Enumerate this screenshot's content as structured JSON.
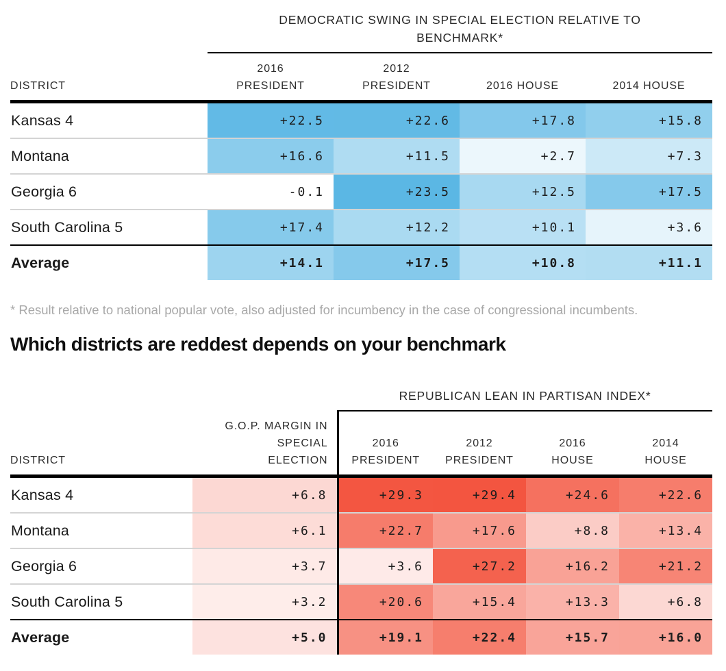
{
  "footnote": "* Result relative to national popular vote, also adjusted for incumbency in the case of congressional incumbents.",
  "headline": "Which districts are reddest depends on your benchmark",
  "chart_data": [
    {
      "type": "table",
      "subtype": "heatmap-table",
      "title": "DEMOCRATIC SWING IN SPECIAL ELECTION RELATIVE TO\nBENCHMARK*",
      "row_header": "DISTRICT",
      "columns": [
        "2016\nPRESIDENT",
        "2012\nPRESIDENT",
        "2016 HOUSE",
        "2014 HOUSE"
      ],
      "rows": [
        {
          "label": "Kansas 4",
          "values": [
            22.5,
            22.6,
            17.8,
            15.8
          ],
          "bold": false
        },
        {
          "label": "Montana",
          "values": [
            16.6,
            11.5,
            2.7,
            7.3
          ],
          "bold": false
        },
        {
          "label": "Georgia 6",
          "values": [
            -0.1,
            23.5,
            12.5,
            17.5
          ],
          "bold": false
        },
        {
          "label": "South Carolina 5",
          "values": [
            17.4,
            12.2,
            10.1,
            3.6
          ],
          "bold": false
        },
        {
          "label": "Average",
          "values": [
            14.1,
            17.5,
            10.8,
            11.1
          ],
          "bold": true
        }
      ],
      "value_format": "signed, one decimal, plus sign for positive",
      "accent_color": "#2ea3dd",
      "zero_color": "#ffffff",
      "scale_max": 30
    },
    {
      "type": "table",
      "subtype": "heatmap-table",
      "title": "REPUBLICAN LEAN IN PARTISAN INDEX*",
      "row_header": "DISTRICT",
      "gop_column": "G.O.P. MARGIN IN\nSPECIAL\nELECTION",
      "columns": [
        "2016\nPRESIDENT",
        "2012\nPRESIDENT",
        "2016\nHOUSE",
        "2014\nHOUSE"
      ],
      "rows": [
        {
          "label": "Kansas 4",
          "gop_margin": 6.8,
          "values": [
            29.3,
            29.4,
            24.6,
            22.6
          ],
          "bold": false
        },
        {
          "label": "Montana",
          "gop_margin": 6.1,
          "values": [
            22.7,
            17.6,
            8.8,
            13.4
          ],
          "bold": false
        },
        {
          "label": "Georgia 6",
          "gop_margin": 3.7,
          "values": [
            3.6,
            27.2,
            16.2,
            21.2
          ],
          "bold": false
        },
        {
          "label": "South Carolina 5",
          "gop_margin": 3.2,
          "values": [
            20.6,
            15.4,
            13.3,
            6.8
          ],
          "bold": false
        },
        {
          "label": "Average",
          "gop_margin": 5.0,
          "values": [
            19.1,
            22.4,
            15.7,
            16.0
          ],
          "bold": true
        }
      ],
      "value_format": "signed, one decimal, plus sign for positive",
      "accent_color": "#f3523c",
      "zero_color": "#ffffff",
      "scale_max": 30
    }
  ]
}
